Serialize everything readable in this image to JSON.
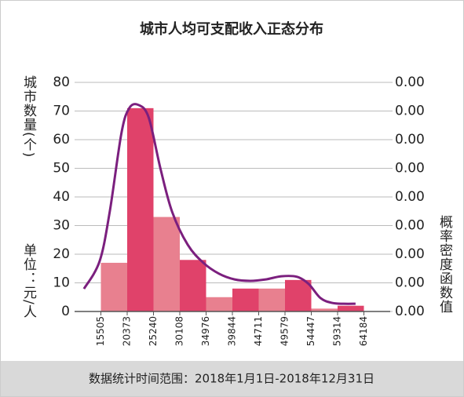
{
  "chart_data": {
    "type": "histogram",
    "title": "城市人均可支配收入正态分布",
    "y_label": "城市数量(个)",
    "unit_note": "单位：元/人",
    "y2_label": "概率密度函数值",
    "footer": "数据统计时间范围：2018年1月1日-2018年12月31日",
    "bins": [
      15505,
      20373,
      25240,
      30108,
      34976,
      39844,
      44711,
      49579,
      54447,
      59314,
      64184
    ],
    "values": [
      17,
      71,
      33,
      18,
      5,
      8,
      8,
      11,
      1,
      2
    ],
    "colors": [
      "#e8808f",
      "#e0426a",
      "#e8808f",
      "#e0426a",
      "#e8808f",
      "#e0426a",
      "#e8808f",
      "#e0426a",
      "#e8808f",
      "#e0426a"
    ],
    "xlim": [
      10637,
      69052
    ],
    "ylim": [
      0,
      80
    ],
    "yticks": [
      0,
      10,
      20,
      30,
      40,
      50,
      60,
      70,
      80
    ],
    "y2lim": [
      0,
      8e-05
    ],
    "y2ticks": [
      {
        "value": 0,
        "label": "0.00"
      },
      {
        "value": 1e-05,
        "label": "0.00"
      },
      {
        "value": 2e-05,
        "label": "0.00"
      },
      {
        "value": 3e-05,
        "label": "0.00"
      },
      {
        "value": 4e-05,
        "label": "0.00"
      },
      {
        "value": 5e-05,
        "label": "0.00"
      },
      {
        "value": 6e-05,
        "label": "0.00"
      },
      {
        "value": 7e-05,
        "label": "0.00"
      },
      {
        "value": 8e-05,
        "label": "0.00"
      }
    ],
    "grid": true,
    "curve": {
      "color": "#7b1f7e",
      "axis": "y2",
      "x": [
        12370,
        15260,
        17140,
        19300,
        20750,
        22480,
        24360,
        26530,
        28690,
        31580,
        34470,
        37360,
        40250,
        43140,
        46030,
        48920,
        51810,
        53970,
        56140,
        58300,
        60470,
        62640
      ],
      "values": [
        7.9e-06,
        1.75e-05,
        3.48e-05,
        6.22e-05,
        7.1e-05,
        7.21e-05,
        6.77e-05,
        4.99e-05,
        3.48e-05,
        2.33e-05,
        1.7e-05,
        1.32e-05,
        1.12e-05,
        1.07e-05,
        1.12e-05,
        1.23e-05,
        1.21e-05,
        9.6e-06,
        4.7e-06,
        3e-06,
        2.7e-06,
        2.7e-06
      ]
    }
  }
}
